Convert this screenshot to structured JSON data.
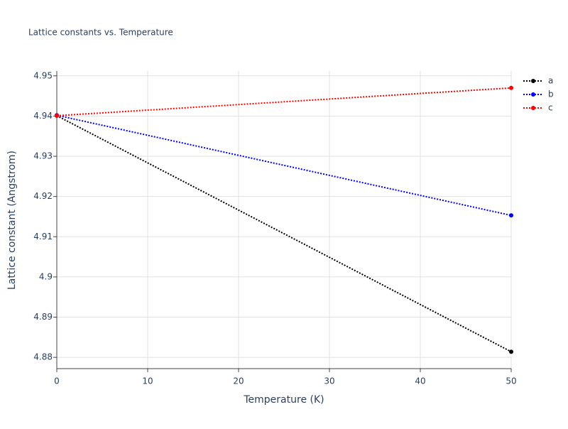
{
  "chart_data": {
    "type": "line",
    "title": "Lattice constants vs. Temperature",
    "x_label": "Temperature (K)",
    "y_label": "Lattice constant (Angstrom)",
    "x": [
      0,
      50
    ],
    "series": [
      {
        "name": "a",
        "color": "#000000",
        "values": [
          4.9401,
          4.8814
        ]
      },
      {
        "name": "b",
        "color": "#0000ff",
        "values": [
          4.9402,
          4.9153
        ]
      },
      {
        "name": "c",
        "color": "#ff0000",
        "values": [
          4.9401,
          4.947
        ]
      }
    ],
    "xlim": [
      0,
      50
    ],
    "xticks": [
      0,
      10,
      20,
      30,
      40,
      50
    ],
    "ylim": [
      4.8772,
      4.9512
    ],
    "yticks": [
      4.88,
      4.89,
      4.9,
      4.91,
      4.92,
      4.93,
      4.94,
      4.95
    ],
    "grid": true,
    "legend": "right"
  }
}
